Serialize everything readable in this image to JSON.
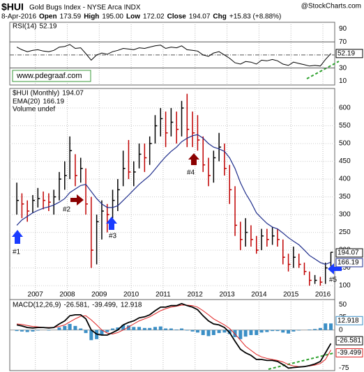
{
  "header": {
    "symbol": "$HUI",
    "name": "Gold Bugs Index - NYSE Arca INDX",
    "source": "@StockCharts.com",
    "date": "8-Apr-2016",
    "quote": [
      [
        "Open",
        "173.59"
      ],
      [
        "High",
        "195.00"
      ],
      [
        "Low",
        "172.02"
      ],
      [
        "Close",
        "194.07"
      ],
      [
        "Chg",
        "+15.83 (+8.88%)"
      ]
    ]
  },
  "chart_data": [
    {
      "type": "line",
      "watermark": "www.pdegraaf.com",
      "ylim": [
        4,
        100
      ],
      "yticks": [
        10,
        30,
        50,
        70,
        90
      ],
      "levels": [
        70,
        50,
        30
      ],
      "series": [
        {
          "name": "RSI(14)",
          "color": "#000000",
          "values": [
            62,
            58,
            55,
            57,
            58,
            56,
            55,
            57,
            62,
            63,
            66,
            60,
            61,
            52,
            42,
            50,
            53,
            51,
            55,
            57,
            60,
            59,
            58,
            61,
            60,
            62,
            64,
            65,
            60,
            62,
            61,
            64,
            58,
            57,
            56,
            50,
            48,
            53,
            55,
            50,
            45,
            38,
            36,
            40,
            39,
            36,
            42,
            41,
            43,
            41,
            36,
            34,
            39,
            37,
            35,
            33,
            34,
            33,
            43,
            52.19
          ]
        }
      ]
    },
    {
      "type": "ohlc",
      "volume_note": "Volume undef",
      "up_color": "#000000",
      "down_color": "#c00000",
      "annotations": [
        "#1",
        "#2",
        "#3",
        "#4",
        "#5"
      ],
      "xlim": [
        2006.2,
        2016.37
      ],
      "xticks": [
        2007,
        2008,
        2009,
        2010,
        2011,
        2012,
        2013,
        2014,
        2015,
        2016
      ],
      "ylim": [
        61,
        655
      ],
      "yticks": [
        100,
        150,
        200,
        250,
        300,
        350,
        400,
        450,
        500,
        550,
        600
      ],
      "grid": true,
      "x": [
        2006.42,
        2006.58,
        2006.75,
        2006.92,
        2007.08,
        2007.25,
        2007.42,
        2007.58,
        2007.75,
        2007.92,
        2008.08,
        2008.25,
        2008.42,
        2008.58,
        2008.75,
        2008.92,
        2009.08,
        2009.25,
        2009.42,
        2009.58,
        2009.75,
        2009.92,
        2010.08,
        2010.25,
        2010.42,
        2010.58,
        2010.75,
        2010.92,
        2011.08,
        2011.25,
        2011.42,
        2011.58,
        2011.75,
        2011.92,
        2012.08,
        2012.25,
        2012.42,
        2012.58,
        2012.75,
        2012.92,
        2013.08,
        2013.25,
        2013.42,
        2013.58,
        2013.75,
        2013.92,
        2014.08,
        2014.25,
        2014.42,
        2014.58,
        2014.75,
        2014.92,
        2015.08,
        2015.25,
        2015.42,
        2015.58,
        2015.75,
        2015.92,
        2016.08,
        2016.25
      ],
      "series": [
        {
          "name": "$HUI (Monthly)",
          "high": [
            390,
            360,
            340,
            355,
            375,
            365,
            360,
            370,
            420,
            450,
            520,
            470,
            460,
            430,
            350,
            300,
            340,
            330,
            370,
            400,
            480,
            510,
            450,
            500,
            500,
            520,
            580,
            600,
            590,
            600,
            590,
            620,
            640,
            590,
            580,
            520,
            460,
            480,
            530,
            500,
            440,
            380,
            280,
            290,
            270,
            240,
            260,
            260,
            265,
            260,
            230,
            190,
            210,
            190,
            165,
            140,
            130,
            125,
            165,
            195
          ],
          "low": [
            300,
            290,
            280,
            305,
            320,
            315,
            310,
            300,
            340,
            370,
            400,
            380,
            390,
            300,
            150,
            160,
            230,
            250,
            290,
            310,
            380,
            400,
            380,
            430,
            420,
            440,
            500,
            520,
            490,
            520,
            500,
            520,
            490,
            490,
            480,
            420,
            380,
            390,
            450,
            410,
            330,
            240,
            200,
            210,
            210,
            190,
            200,
            210,
            215,
            210,
            160,
            140,
            150,
            150,
            130,
            100,
            105,
            100,
            105,
            140
          ],
          "close": [
            340,
            330,
            310,
            340,
            345,
            340,
            335,
            350,
            400,
            410,
            480,
            410,
            430,
            330,
            200,
            280,
            310,
            300,
            340,
            370,
            430,
            420,
            420,
            470,
            460,
            500,
            550,
            570,
            530,
            560,
            540,
            600,
            540,
            530,
            510,
            440,
            410,
            460,
            490,
            430,
            370,
            270,
            230,
            250,
            230,
            200,
            240,
            230,
            240,
            230,
            180,
            160,
            180,
            160,
            140,
            115,
            115,
            110,
            150,
            194.07
          ]
        },
        {
          "name": "EMA(20)",
          "color": "#1f2e8c",
          "values": [
            270,
            285,
            295,
            305,
            312,
            318,
            322,
            327,
            335,
            345,
            362,
            372,
            382,
            385,
            365,
            345,
            330,
            320,
            320,
            325,
            340,
            355,
            370,
            385,
            398,
            410,
            428,
            447,
            463,
            478,
            490,
            505,
            515,
            522,
            525,
            515,
            500,
            490,
            485,
            478,
            460,
            430,
            390,
            360,
            335,
            305,
            290,
            275,
            265,
            260,
            248,
            235,
            225,
            215,
            200,
            185,
            175,
            165,
            160,
            166.19
          ]
        }
      ]
    },
    {
      "type": "macd",
      "title": "MACD(12,26,9)",
      "legend_values": [
        "-26.581,",
        "-39.499,",
        "12.918"
      ],
      "ylim": [
        -80,
        60
      ],
      "yticks": [
        50,
        25,
        0,
        -25,
        -50,
        -75
      ],
      "series": [
        {
          "name": "MACD",
          "color": "#000000",
          "values": [
            10,
            8,
            5,
            4,
            5,
            5,
            4,
            5,
            12,
            18,
            28,
            30,
            30,
            22,
            0,
            -8,
            -10,
            -10,
            -5,
            0,
            10,
            15,
            18,
            24,
            26,
            30,
            38,
            45,
            45,
            48,
            48,
            52,
            48,
            45,
            40,
            28,
            18,
            12,
            10,
            5,
            -5,
            -22,
            -38,
            -45,
            -50,
            -58,
            -58,
            -60,
            -60,
            -62,
            -68,
            -75,
            -74,
            -73,
            -72,
            -70,
            -67,
            -62,
            -45,
            -26.581
          ]
        },
        {
          "name": "Signal",
          "color": "#e02020",
          "values": [
            12,
            11,
            9,
            7,
            6,
            5,
            5,
            5,
            7,
            10,
            16,
            22,
            27,
            28,
            20,
            10,
            0,
            -6,
            -8,
            -5,
            0,
            6,
            12,
            18,
            22,
            26,
            32,
            38,
            42,
            45,
            47,
            49,
            49,
            48,
            45,
            38,
            30,
            22,
            16,
            10,
            3,
            -8,
            -20,
            -32,
            -40,
            -48,
            -53,
            -56,
            -58,
            -60,
            -63,
            -68,
            -71,
            -72,
            -72,
            -71,
            -69,
            -66,
            -58,
            -39.499
          ]
        },
        {
          "name": "Histogram",
          "color": "#3b8fc6",
          "values": [
            -2,
            -3,
            -4,
            -3,
            -1,
            0,
            -1,
            0,
            5,
            8,
            12,
            8,
            3,
            -6,
            -20,
            -18,
            -10,
            -4,
            3,
            5,
            10,
            9,
            6,
            6,
            4,
            4,
            6,
            7,
            3,
            3,
            1,
            3,
            -1,
            -3,
            -5,
            -10,
            -12,
            -10,
            -6,
            -5,
            -8,
            -14,
            -18,
            -13,
            -10,
            -10,
            -5,
            -4,
            -2,
            -2,
            -5,
            -7,
            -3,
            -1,
            0,
            1,
            2,
            4,
            13,
            12.918
          ]
        }
      ]
    }
  ]
}
